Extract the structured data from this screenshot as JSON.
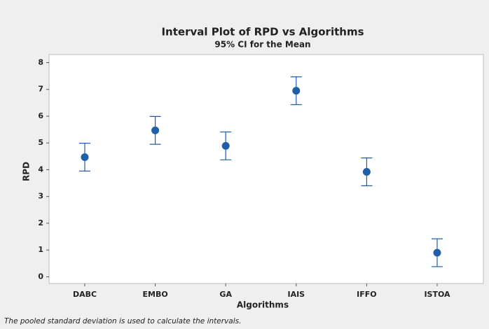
{
  "chart_data": {
    "type": "interval",
    "title": "Interval Plot of RPD vs Algorithms",
    "subtitle": "95% CI for the Mean",
    "x_label": "Algorithms",
    "y_label": "RPD",
    "footnote": "The pooled standard deviation is used to calculate the intervals.",
    "categories": [
      "DABC",
      "EMBO",
      "GA",
      "IAIS",
      "IFFO",
      "ISTOA"
    ],
    "values": [
      4.47,
      5.47,
      4.89,
      6.95,
      3.92,
      0.9
    ],
    "errors": [
      0.52,
      0.52,
      0.52,
      0.52,
      0.52,
      0.52
    ],
    "color": "#1f5fa8",
    "ylim": [
      -0.25,
      8.3
    ],
    "yticks": [
      0,
      1,
      2,
      3,
      4,
      5,
      6,
      7,
      8
    ],
    "grid": false
  }
}
